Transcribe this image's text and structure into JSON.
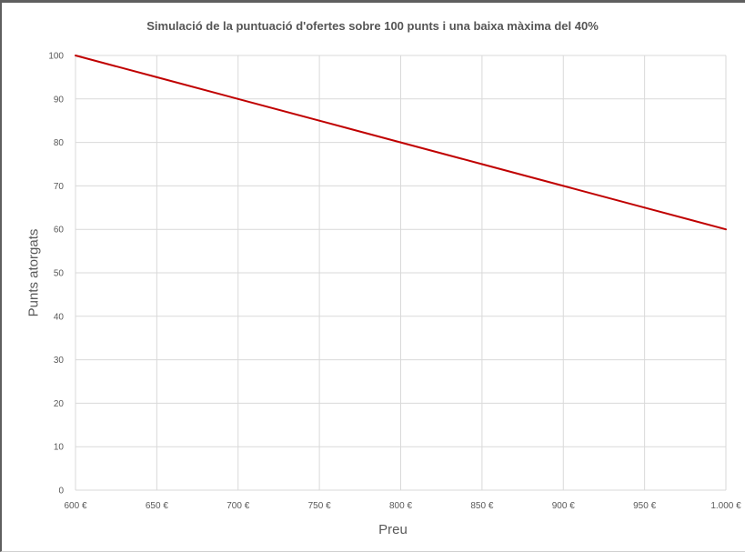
{
  "chart_data": {
    "type": "line",
    "title": "Simulació de la puntuació d'ofertes sobre 100 punts i una baixa màxima del 40%",
    "xlabel": "Preu",
    "ylabel": "Punts atorgats",
    "x": [
      600,
      650,
      700,
      750,
      800,
      850,
      900,
      950,
      1000
    ],
    "x_tick_labels": [
      "600 €",
      "650 €",
      "700 €",
      "750 €",
      "800 €",
      "850 €",
      "900 €",
      "950 €",
      "1.000 €"
    ],
    "y_ticks": [
      0,
      10,
      20,
      30,
      40,
      50,
      60,
      70,
      80,
      90,
      100
    ],
    "xlim": [
      600,
      1000
    ],
    "ylim": [
      0,
      100
    ],
    "grid": true,
    "legend": "none",
    "series": [
      {
        "values": [
          100,
          95,
          90,
          85,
          80,
          75,
          70,
          65,
          60
        ],
        "color": "#c00000"
      }
    ]
  },
  "colors": {
    "grid": "#d9d9d9",
    "axis_text": "#595959",
    "line": "#c00000"
  }
}
